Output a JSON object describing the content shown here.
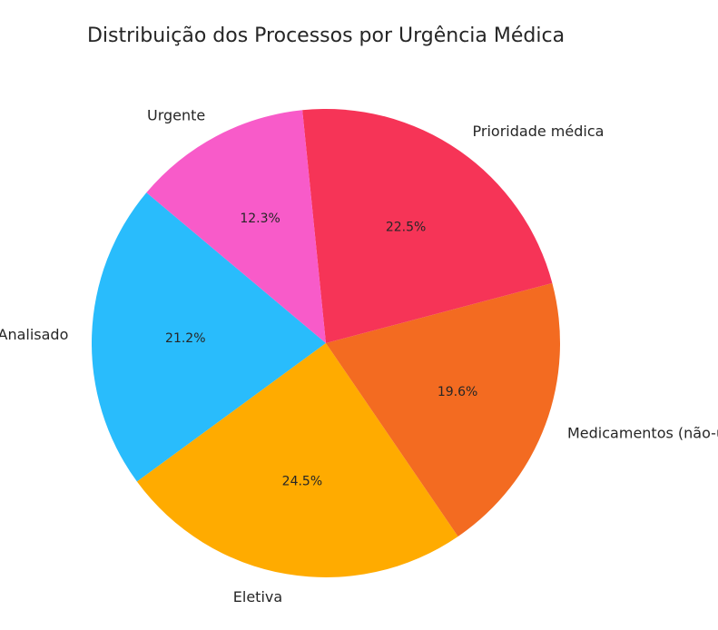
{
  "chart_data": {
    "type": "pie",
    "title": "Distribuição dos Processos por Urgência Médica",
    "startangle": 140,
    "direction": "counterclockwise",
    "slices": [
      {
        "label": "Não Analisado",
        "value": 21.2,
        "pct_label": "21.2%",
        "color": "#29BCFC"
      },
      {
        "label": "Eletiva",
        "value": 24.5,
        "pct_label": "24.5%",
        "color": "#FFAB00"
      },
      {
        "label": "Medicamentos (não-urgente)",
        "value": 19.6,
        "pct_label": "19.6%",
        "color": "#F36B21"
      },
      {
        "label": "Prioridade médica",
        "value": 22.5,
        "pct_label": "22.5%",
        "color": "#F63457"
      },
      {
        "label": "Urgente",
        "value": 12.3,
        "pct_label": "12.3%",
        "color": "#F85BC9"
      }
    ]
  }
}
